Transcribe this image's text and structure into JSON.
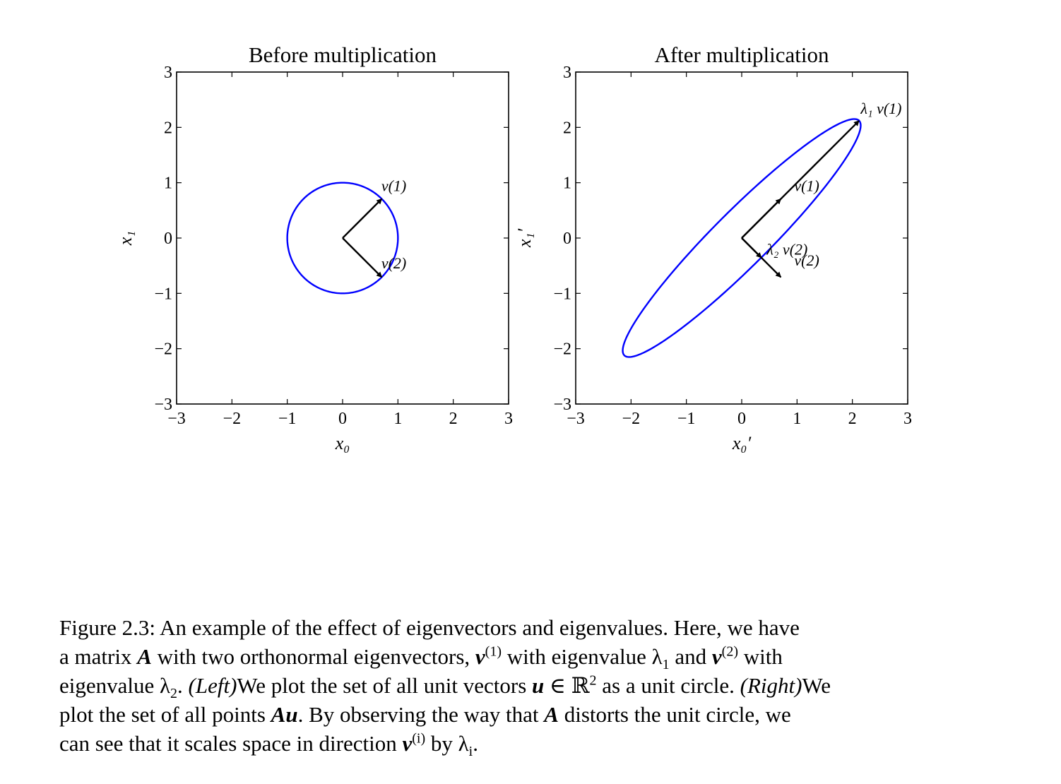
{
  "chart_data": [
    {
      "type": "line",
      "title": "Before multiplication",
      "xlabel": "x₀",
      "ylabel": "x₁",
      "xlim": [
        -3,
        3
      ],
      "ylim": [
        -3,
        3
      ],
      "xticks": [
        "−3",
        "−2",
        "−1",
        "0",
        "1",
        "2",
        "3"
      ],
      "yticks": [
        "−3",
        "−2",
        "−1",
        "0",
        "1",
        "2",
        "3"
      ],
      "tick_values": [
        -3,
        -2,
        -1,
        0,
        1,
        2,
        3
      ],
      "curve": {
        "shape": "unit circle",
        "color": "#0000ff",
        "major_axis": [
          1,
          1
        ],
        "major_radius": 1,
        "minor_radius": 1
      },
      "vectors": [
        {
          "label": "v(1)",
          "from": [
            0,
            0
          ],
          "to": [
            0.707,
            0.707
          ],
          "label_at": [
            0.7,
            0.85
          ]
        },
        {
          "label": "v(2)",
          "from": [
            0,
            0
          ],
          "to": [
            0.707,
            -0.707
          ],
          "label_at": [
            0.7,
            -0.55
          ]
        }
      ],
      "grid": false
    },
    {
      "type": "line",
      "title": "After multiplication",
      "xlabel": "x₀′",
      "ylabel": "x₁′",
      "xlim": [
        -3,
        3
      ],
      "ylim": [
        -3,
        3
      ],
      "xticks": [
        "−3",
        "−2",
        "−1",
        "0",
        "1",
        "2",
        "3"
      ],
      "yticks": [
        "−3",
        "−2",
        "−1",
        "0",
        "1",
        "2",
        "3"
      ],
      "tick_values": [
        -3,
        -2,
        -1,
        0,
        1,
        2,
        3
      ],
      "curve": {
        "shape": "ellipse",
        "color": "#0000ff",
        "major_axis": [
          1,
          1
        ],
        "major_radius": 3,
        "minor_radius": 0.5
      },
      "vectors": [
        {
          "label": "v(1)",
          "from": [
            0,
            0
          ],
          "to": [
            0.707,
            0.707
          ],
          "label_at": [
            0.95,
            0.85
          ]
        },
        {
          "label": "λ₁ v(1)",
          "from": [
            0,
            0
          ],
          "to": [
            2.12,
            2.12
          ],
          "label_at": [
            2.15,
            2.25
          ]
        },
        {
          "label": "v(2)",
          "from": [
            0,
            0
          ],
          "to": [
            0.707,
            -0.707
          ],
          "label_at": [
            0.95,
            -0.5
          ]
        },
        {
          "label": "λ₂ v(2)",
          "from": [
            0,
            0
          ],
          "to": [
            0.354,
            -0.354
          ],
          "label_at": [
            0.45,
            -0.3
          ]
        }
      ],
      "grid": false
    }
  ],
  "caption": {
    "line1": "Figure 2.3: An example of the effect of eigenvectors and eigenvalues. Here, we have",
    "line2_a": "a matrix ",
    "line2_A": "A",
    "line2_b": " with two orthonormal eigenvectors, ",
    "line2_v": "v",
    "line2_sup1": "(1)",
    "line2_c": " with eigenvalue λ",
    "line2_sub1": "1",
    "line2_d": " and ",
    "line2_v2": "v",
    "line2_sup2": "(2)",
    "line2_e": " with",
    "line3_a": "eigenvalue λ",
    "line3_sub2": "2",
    "line3_b": ". ",
    "line3_left": "(Left)",
    "line3_c": "We plot the set of all unit vectors ",
    "line3_u": "u",
    "line3_d": " ∈ ℝ",
    "line3_sup": "2",
    "line3_e": " as a unit circle. ",
    "line3_right": "(Right)",
    "line3_f": "We",
    "line4_a": "plot the set of all points ",
    "line4_Au": "Au",
    "line4_b": ". By observing the way that ",
    "line4_A": "A",
    "line4_c": " distorts the unit circle, we",
    "line5_a": "can see that it scales space in direction ",
    "line5_v": "v",
    "line5_sup": "(i)",
    "line5_b": " by λ",
    "line5_sub": "i",
    "line5_c": "."
  }
}
